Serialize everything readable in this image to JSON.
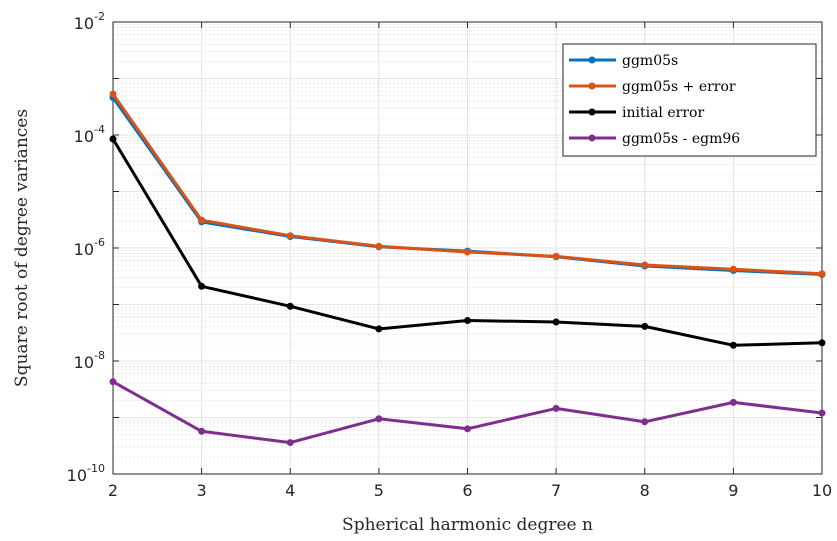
{
  "chart_data": {
    "type": "line",
    "x": [
      2,
      3,
      4,
      5,
      6,
      7,
      8,
      9,
      10
    ],
    "xlabel": "Spherical harmonic degree n",
    "ylabel": "Square root of degree variances",
    "xlim": [
      2,
      10
    ],
    "ylim": [
      1e-10,
      0.01
    ],
    "yscale": "log",
    "grid": true,
    "minor_grid": true,
    "legend_position": "top-right",
    "x_tick_labels": [
      "2",
      "3",
      "4",
      "5",
      "6",
      "7",
      "8",
      "9",
      "10"
    ],
    "y_tick_labels": [
      {
        "base": "10",
        "exp": "-10"
      },
      {
        "base": "10",
        "exp": "-8"
      },
      {
        "base": "10",
        "exp": "-6"
      },
      {
        "base": "10",
        "exp": "-4"
      },
      {
        "base": "10",
        "exp": "-2"
      }
    ],
    "series": [
      {
        "name": "ggm05s",
        "color": "#0072BD",
        "values": [
          0.00046,
          2.9e-06,
          1.6e-06,
          1.05e-06,
          8.8e-07,
          7e-07,
          4.8e-07,
          4e-07,
          3.4e-07
        ]
      },
      {
        "name": "ggm05s + error",
        "color": "#D95319",
        "values": [
          0.00053,
          3.1e-06,
          1.65e-06,
          1.07e-06,
          8.5e-07,
          7.1e-07,
          5e-07,
          4.2e-07,
          3.5e-07
        ]
      },
      {
        "name": "initial error",
        "color": "#000000",
        "values": [
          8.5e-05,
          2.1e-07,
          9.3e-08,
          3.7e-08,
          5.2e-08,
          4.9e-08,
          4.1e-08,
          1.9e-08,
          2.1e-08
        ]
      },
      {
        "name": "ggm05s - egm96",
        "color": "#7E2F8E",
        "values": [
          4.3e-09,
          5.7e-10,
          3.6e-10,
          9.5e-10,
          6.3e-10,
          1.45e-09,
          8.4e-10,
          1.85e-09,
          1.2e-09
        ]
      }
    ]
  }
}
